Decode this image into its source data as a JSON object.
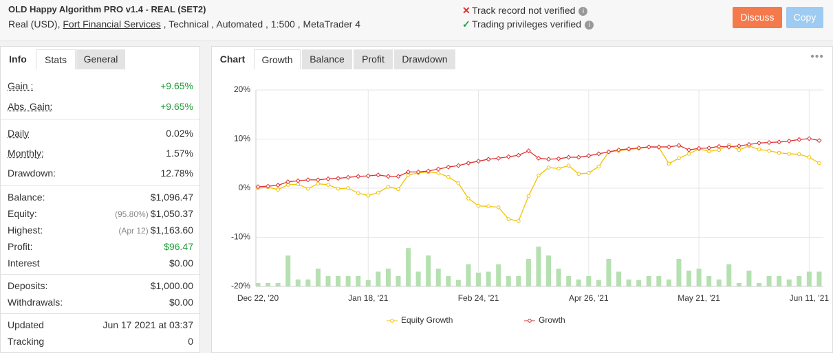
{
  "header": {
    "title": "OLD Happy Algorithm PRO v1.4 - REAL (SET2)",
    "subtitle": [
      "Real (USD), ",
      "Fort Financial Services",
      " , Technical , Automated , 1:500 , MetaTrader 4"
    ],
    "status": [
      "Track record not verified",
      "Trading privileges verified"
    ],
    "buttons": [
      "Discuss",
      "Copy"
    ]
  },
  "left_tabs": [
    "Info",
    "Stats",
    "General"
  ],
  "stats": [
    [
      {
        "label": "Gain :",
        "value": "+9.65%",
        "underline": true,
        "color": "#1f9e3a"
      },
      {
        "label": "Abs. Gain:",
        "value": "+9.65%",
        "underline": true,
        "color": "#1f9e3a"
      }
    ],
    [
      {
        "label": "Daily",
        "value": "0.02%",
        "underline": true
      },
      {
        "label": "Monthly:",
        "value": "1.57%",
        "underline": true
      },
      {
        "label": "Drawdown:",
        "value": "12.78%"
      }
    ],
    [
      {
        "label": "Balance:",
        "value": "$1,096.47"
      },
      {
        "label": "Equity:",
        "note": "(95.80%)",
        "value": "$1,050.37"
      },
      {
        "label": "Highest:",
        "note": "(Apr 12)",
        "value": "$1,163.60"
      },
      {
        "label": "Profit:",
        "value": "$96.47",
        "color": "#1f9e3a"
      },
      {
        "label": "Interest",
        "value": "$0.00"
      }
    ],
    [
      {
        "label": "Deposits:",
        "value": "$1,000.00"
      },
      {
        "label": "Withdrawals:",
        "value": "$0.00"
      }
    ],
    [
      {
        "label": "Updated",
        "value": "Jun 17 2021 at 03:37"
      },
      {
        "label": "Tracking",
        "value": "0"
      }
    ]
  ],
  "chart_tabs": [
    "Chart",
    "Growth",
    "Balance",
    "Profit",
    "Drawdown"
  ],
  "chart_data": {
    "type": "line",
    "categories": [
      "Dec 22, '20",
      null,
      null,
      null,
      null,
      null,
      null,
      null,
      null,
      null,
      null,
      "Jan 18, '21",
      null,
      null,
      null,
      null,
      null,
      null,
      null,
      null,
      null,
      null,
      "Feb 24, '21",
      null,
      null,
      null,
      null,
      null,
      null,
      null,
      null,
      null,
      null,
      "Apr 26, '21",
      null,
      null,
      null,
      null,
      null,
      null,
      null,
      null,
      null,
      null,
      "May 21, '21",
      null,
      null,
      null,
      null,
      null,
      null,
      null,
      null,
      null,
      null,
      "Jun 11, '21",
      null
    ],
    "ylim": [
      -20,
      20
    ],
    "yticks": [
      {
        "value": -20,
        "label": "-20%"
      },
      {
        "value": -10,
        "label": "-10%"
      },
      {
        "value": 0,
        "label": "0%"
      },
      {
        "value": 10,
        "label": "10%"
      },
      {
        "value": 20,
        "label": "20%"
      }
    ],
    "y2lim": [
      0,
      40
    ],
    "grid": true,
    "series": [
      {
        "name": "Equity Growth",
        "color": "#f2c200",
        "values": [
          0,
          0.2,
          -0.3,
          0.7,
          0.8,
          -0.1,
          0.9,
          0.7,
          -0.1,
          0,
          -1.0,
          -1.5,
          -0.9,
          0.3,
          -0.2,
          2.7,
          3.1,
          3.3,
          3.1,
          2.3,
          1.0,
          -2.1,
          -3.6,
          -3.7,
          -3.9,
          -6.3,
          -6.7,
          -1.6,
          2.6,
          4.2,
          4.0,
          4.6,
          2.9,
          3.1,
          4.4,
          7.4,
          7.6,
          7.9,
          8.1,
          8.4,
          8.3,
          5.0,
          6.1,
          7.0,
          8.0,
          7.5,
          7.8,
          8.8,
          7.8,
          8.6,
          7.9,
          7.6,
          7.2,
          7.0,
          6.9,
          6.3,
          5.1
        ]
      },
      {
        "name": "Growth",
        "color": "#e03030",
        "values": [
          0.3,
          0.4,
          0.6,
          1.3,
          1.5,
          1.7,
          1.7,
          1.9,
          2.0,
          2.2,
          2.4,
          2.5,
          2.7,
          2.4,
          2.4,
          3.3,
          3.3,
          3.5,
          3.9,
          4.3,
          4.6,
          5.1,
          5.5,
          5.9,
          6.1,
          6.4,
          6.7,
          7.6,
          6.1,
          5.9,
          6.0,
          6.3,
          6.3,
          6.6,
          7.0,
          7.4,
          7.8,
          8.0,
          8.2,
          8.4,
          8.4,
          8.4,
          8.7,
          7.8,
          8.1,
          8.2,
          8.5,
          8.4,
          8.6,
          8.9,
          9.2,
          9.3,
          9.4,
          9.6,
          9.9,
          10.1,
          9.7
        ]
      },
      {
        "type": "bar",
        "axis": "y2",
        "color": "#b5e0b0",
        "values": [
          0.7,
          0.7,
          0.7,
          6.3,
          1.4,
          1.4,
          3.6,
          2.1,
          2.1,
          2.1,
          2.1,
          1.3,
          3.0,
          3.6,
          2.1,
          7.8,
          3.0,
          6.3,
          3.6,
          2.1,
          1.3,
          4.5,
          2.8,
          3.0,
          4.5,
          2.1,
          2.1,
          5.6,
          8.1,
          6.3,
          3.6,
          2.1,
          1.4,
          2.1,
          1.3,
          5.6,
          3.0,
          1.4,
          1.3,
          2.1,
          2.1,
          1.4,
          5.6,
          3.2,
          3.6,
          2.1,
          1.4,
          4.5,
          0.7,
          3.2,
          0.7,
          2.1,
          2.1,
          1.4,
          2.1,
          3.0,
          3.0
        ]
      }
    ]
  }
}
